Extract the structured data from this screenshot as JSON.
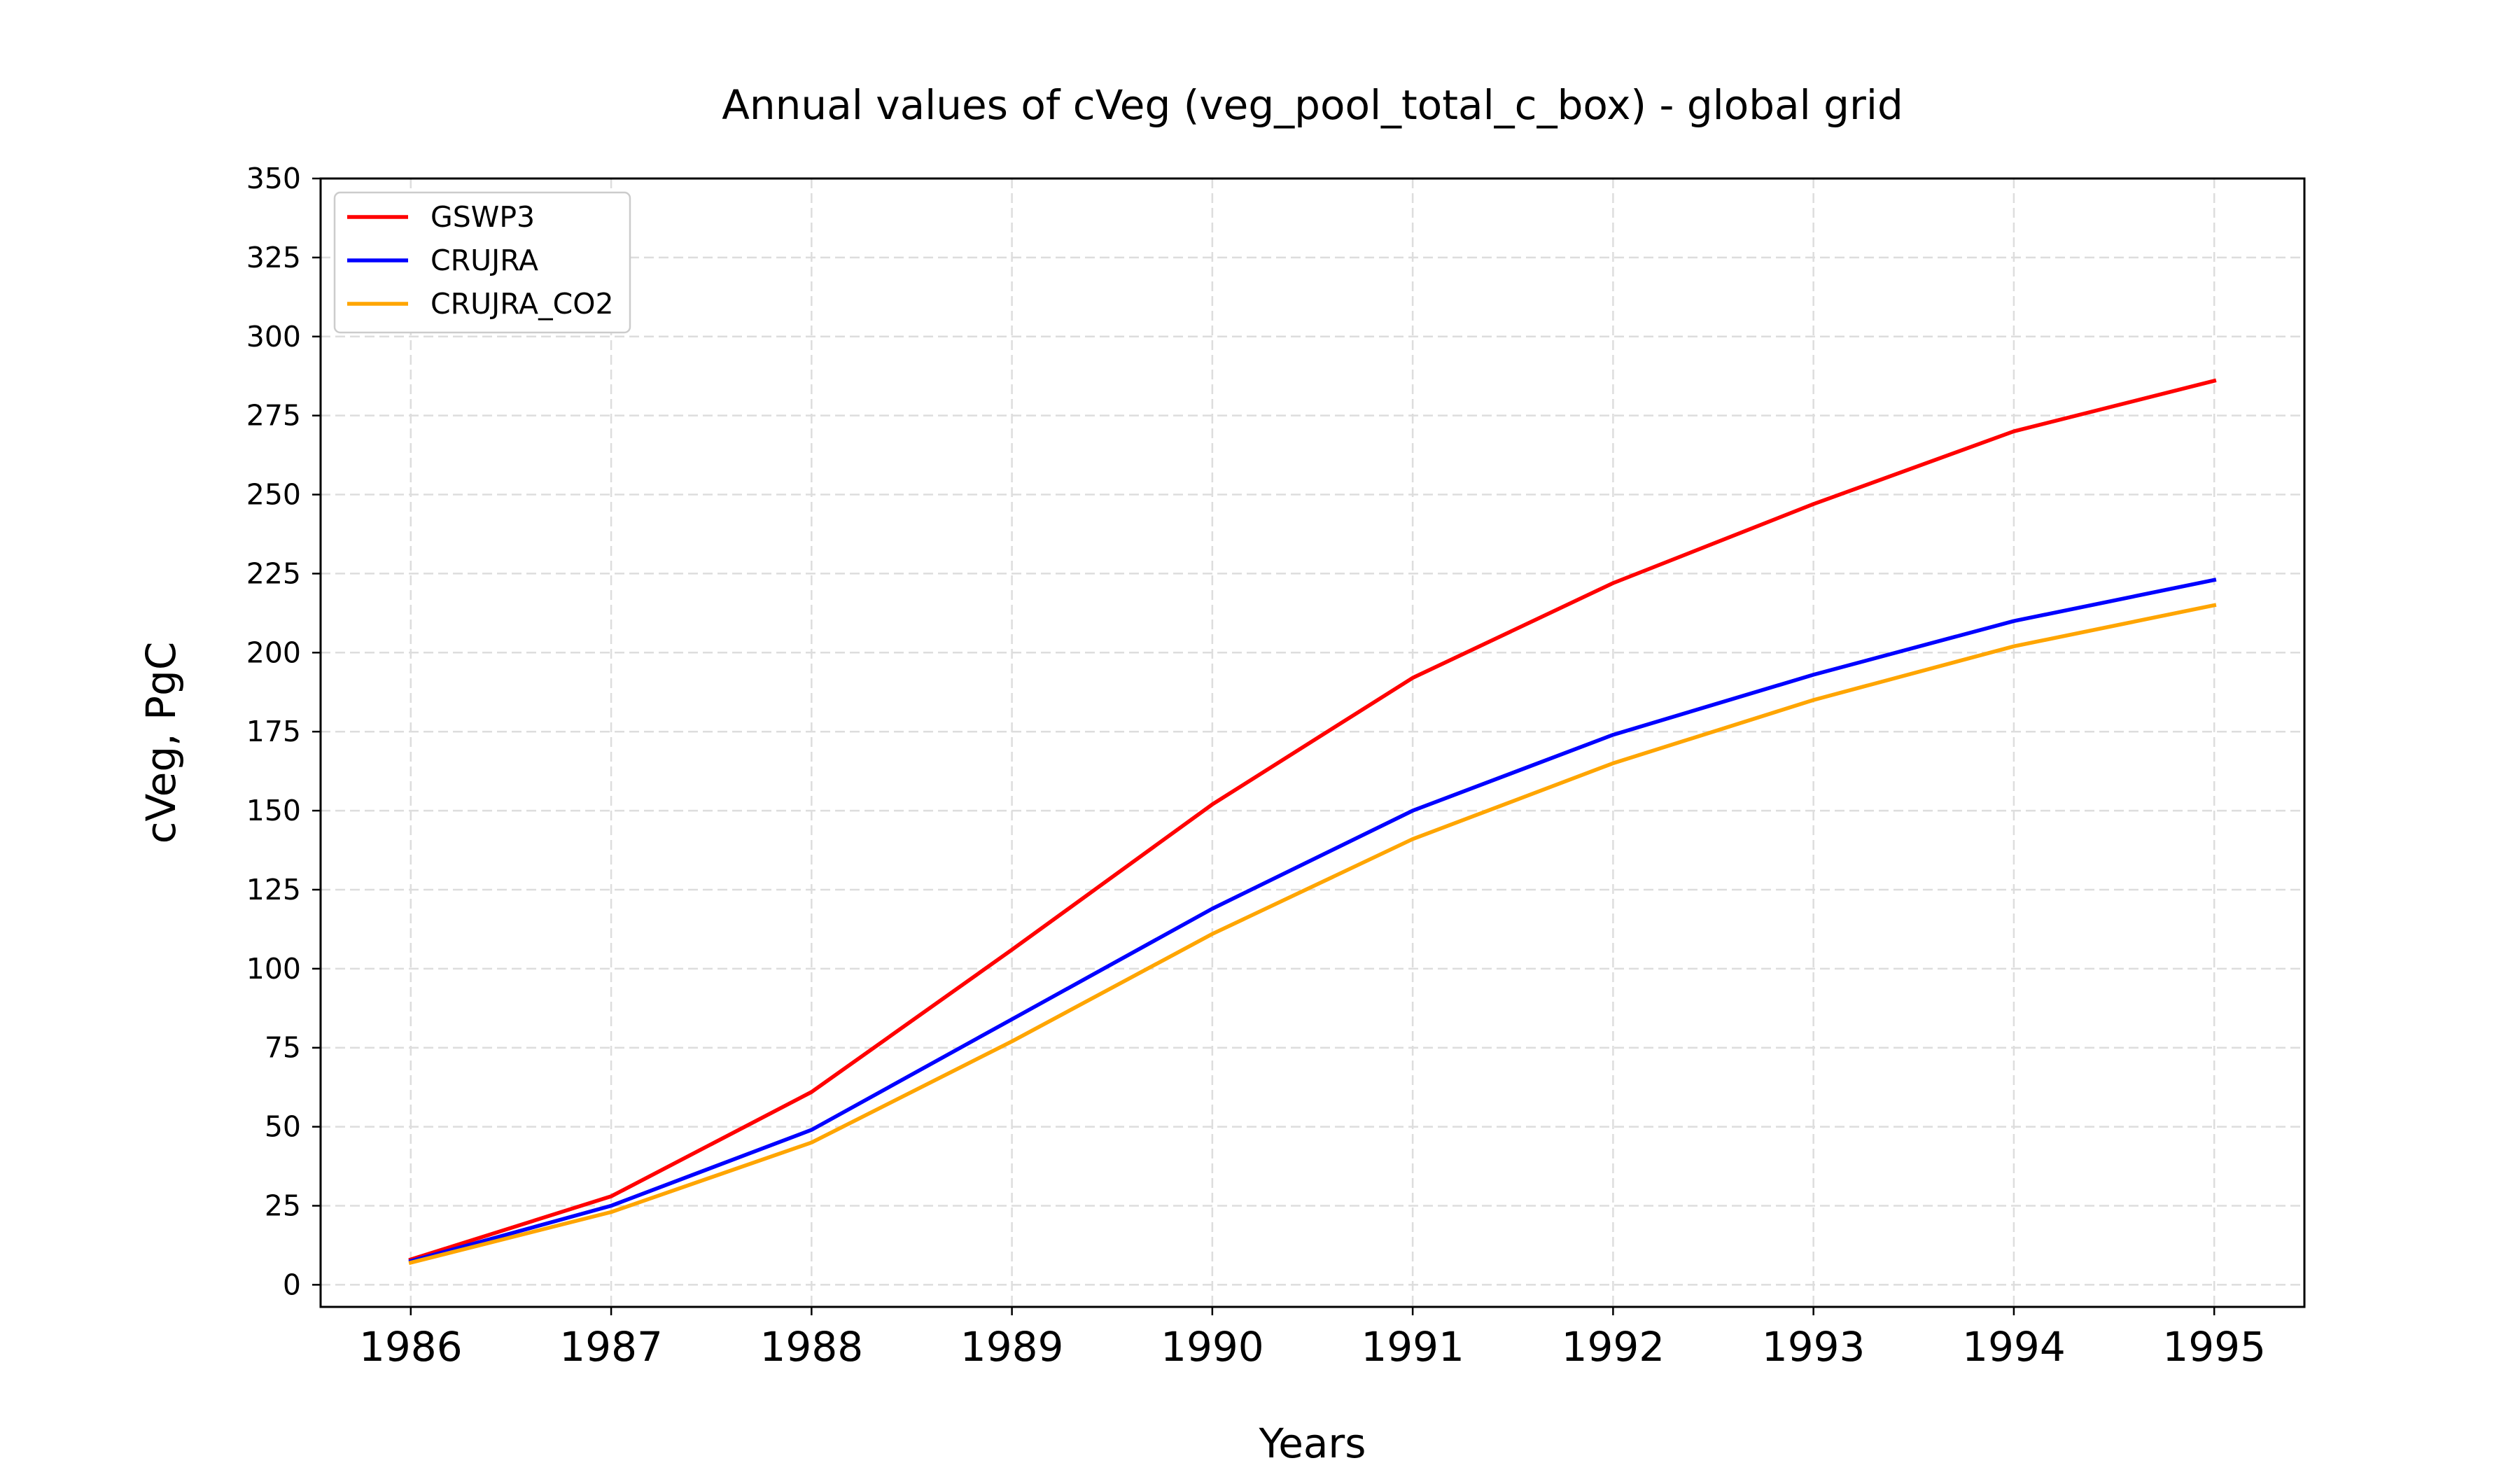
{
  "chart_data": {
    "type": "line",
    "title": "Annual values of cVeg (veg_pool_total_c_box) - global grid",
    "xlabel": "Years",
    "ylabel": "cVeg, PgC",
    "x": [
      1986,
      1987,
      1988,
      1989,
      1990,
      1991,
      1992,
      1993,
      1994,
      1995
    ],
    "xlim": [
      1985.55,
      1995.45
    ],
    "ylim": [
      -7,
      350
    ],
    "yticks": [
      0,
      25,
      50,
      75,
      100,
      125,
      150,
      175,
      200,
      225,
      250,
      275,
      300,
      325,
      350
    ],
    "grid": true,
    "legend_position": "top-left",
    "series": [
      {
        "name": "GSWP3",
        "color": "#ff0000",
        "values": [
          8,
          28,
          61,
          106,
          152,
          192,
          222,
          247,
          270,
          286
        ]
      },
      {
        "name": "CRUJRA",
        "color": "#0000ff",
        "values": [
          7.5,
          25,
          49,
          84,
          119,
          150,
          174,
          193,
          210,
          223
        ]
      },
      {
        "name": "CRUJRA_CO2",
        "color": "#ffa500",
        "values": [
          7,
          23,
          45,
          77,
          111,
          141,
          165,
          185,
          202,
          215
        ]
      }
    ]
  }
}
